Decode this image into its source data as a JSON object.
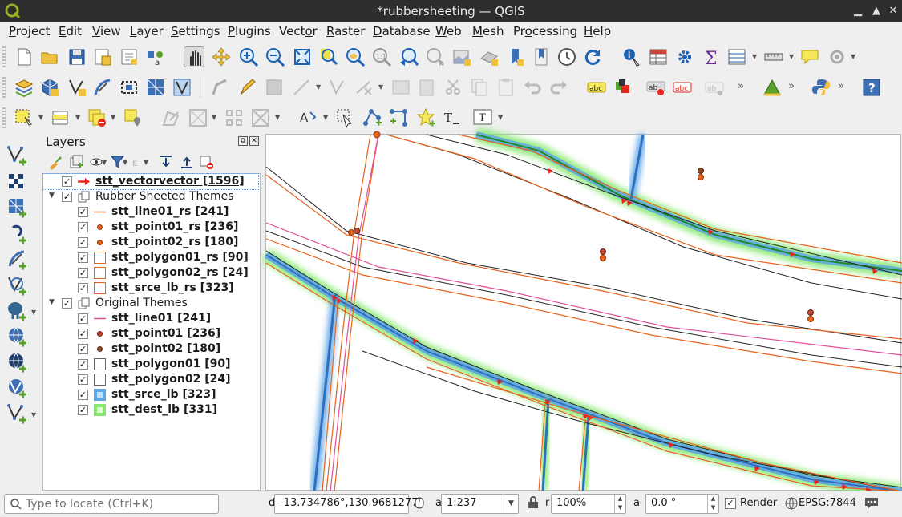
{
  "window": {
    "title": "*rubbersheeting — QGIS",
    "controls": [
      "minimize",
      "maximize",
      "close"
    ]
  },
  "menubar": {
    "items": [
      {
        "label": "Project",
        "u": "P",
        "rest": "roject"
      },
      {
        "label": "Edit",
        "u": "E",
        "rest": "dit"
      },
      {
        "label": "View",
        "u": "V",
        "rest": "iew"
      },
      {
        "label": "Layer",
        "u": "L",
        "rest": "ayer"
      },
      {
        "label": "Settings",
        "u": "S",
        "rest": "ettings"
      },
      {
        "label": "Plugins",
        "u": "P",
        "rest": "lugins"
      },
      {
        "label": "Vector",
        "u": "o",
        "pre": "Vect",
        "rest": "r"
      },
      {
        "label": "Raster",
        "u": "R",
        "rest": "aster"
      },
      {
        "label": "Database",
        "u": "D",
        "rest": "atabase"
      },
      {
        "label": "Web",
        "u": "W",
        "rest": "eb"
      },
      {
        "label": "Mesh",
        "u": "M",
        "rest": "esh"
      },
      {
        "label": "Processing",
        "u": "o",
        "pre": "Pr",
        "rest": "cessing"
      },
      {
        "label": "Help",
        "u": "H",
        "rest": "elp"
      }
    ]
  },
  "toolbars": {
    "row1_icons": [
      "new-project-icon",
      "open-project-icon",
      "save-project-icon",
      "save-as-icon",
      "new-layout-icon",
      "style-manager-icon",
      "pan-map-icon",
      "pan-to-selection-icon",
      "zoom-in-icon",
      "zoom-out-icon",
      "zoom-full-icon",
      "zoom-to-selection-icon",
      "zoom-to-layer-icon",
      "zoom-native-icon",
      "zoom-last-icon",
      "zoom-next-icon",
      "new-map-view-icon",
      "new-3d-view-icon",
      "bookmark-icon",
      "bookmarks-panel-icon",
      "temporal-controller-icon",
      "refresh-icon",
      "identify-icon",
      "attribute-table-icon",
      "settings-cog-icon",
      "statistics-sum-icon",
      "open-table-icon",
      "measure-icon",
      "map-tips-icon",
      "gps-icon"
    ],
    "row2_icons": [
      "data-source-manager-icon",
      "new-geopackage-icon",
      "digitize-line-icon",
      "digitize-curve-icon",
      "digitize-polygon-icon",
      "mesh-icon",
      "snap-icon",
      "current-edits-icon",
      "toggle-editing-icon",
      "save-edits-icon",
      "add-point-icon",
      "vertex-tool-icon",
      "delete-icon",
      "cut-icon",
      "copy-icon",
      "paste-icon",
      "undo-icon",
      "redo-icon",
      "label-abc-icon",
      "label-pin-icon",
      "label-move-icon",
      "label-rotate-icon",
      "label-change-icon",
      "label-hide-icon",
      "georeferencer-icon",
      "python-console-icon",
      "help-icon"
    ],
    "row3_icons": [
      "select-features-icon",
      "select-by-value-icon",
      "deselect-icon",
      "select-location-icon",
      "digitize-tool-icon",
      "add-ring-icon",
      "reshape-icon",
      "offset-curve-icon",
      "label-tool-icon",
      "pointer-icon",
      "add-vertex-icon",
      "node-tool-icon",
      "star-icon",
      "text-annotation-icon",
      "text-tool-icon"
    ]
  },
  "layers_panel": {
    "title": "Layers",
    "tree": [
      {
        "label": "stt_vectorvector [1596]",
        "checked": true,
        "bold": true,
        "underline": true,
        "symbol": "arrow",
        "level": 0
      },
      {
        "label": "Rubber Sheeted Themes",
        "checked": true,
        "group": true,
        "level": 0
      },
      {
        "label": "stt_line01_rs [241]",
        "checked": true,
        "bold": true,
        "symbol": "line-orange",
        "level": 1
      },
      {
        "label": "stt_point01_rs [236]",
        "checked": true,
        "bold": true,
        "symbol": "point-orange",
        "level": 1
      },
      {
        "label": "stt_point02_rs [180]",
        "checked": true,
        "bold": true,
        "symbol": "point-orange",
        "level": 1
      },
      {
        "label": "stt_polygon01_rs [90]",
        "checked": true,
        "bold": true,
        "symbol": "poly-orange",
        "level": 1
      },
      {
        "label": "stt_polygon02_rs [24]",
        "checked": true,
        "bold": true,
        "symbol": "poly-orange",
        "level": 1
      },
      {
        "label": "stt_srce_lb_rs [323]",
        "checked": true,
        "bold": true,
        "symbol": "poly-orange",
        "level": 1
      },
      {
        "label": "Original Themes",
        "checked": true,
        "group": true,
        "level": 0
      },
      {
        "label": "stt_line01 [241]",
        "checked": true,
        "bold": true,
        "symbol": "line-pink",
        "level": 1
      },
      {
        "label": "stt_point01 [236]",
        "checked": true,
        "bold": true,
        "symbol": "point-red",
        "level": 1
      },
      {
        "label": "stt_point02 [180]",
        "checked": true,
        "bold": true,
        "symbol": "point-brown",
        "level": 1
      },
      {
        "label": "stt_polygon01 [90]",
        "checked": true,
        "bold": true,
        "symbol": "poly-gray",
        "level": 1
      },
      {
        "label": "stt_polygon02 [24]",
        "checked": true,
        "bold": true,
        "symbol": "poly-gray",
        "level": 1
      },
      {
        "label": "stt_srce_lb [323]",
        "checked": true,
        "bold": true,
        "symbol": "raster-blue",
        "level": 1
      },
      {
        "label": "stt_dest_lb [331]",
        "checked": true,
        "bold": true,
        "symbol": "raster-green",
        "level": 1
      }
    ]
  },
  "statusbar": {
    "locate_placeholder": "Type to locate (Ctrl+K)",
    "coordinate_label": "d",
    "coordinate": "-13.734786°,130.9681277°",
    "scale_label": "a",
    "scale": "1:237",
    "magnifier_label": "r",
    "magnifier": "100%",
    "rotation_label": "a",
    "rotation": "0.0 °",
    "render_label": "Render",
    "render_checked": true,
    "crs": "EPSG:7844"
  },
  "colors": {
    "orange_line": "#e8621a",
    "pink_line": "#e0509a",
    "black_line": "#222222",
    "point_orange": "#e8621a",
    "point_red": "#c8463c",
    "point_brown": "#8a4a2e",
    "glow_blue": "#5fa6e6",
    "glow_green": "#86e86e",
    "vector_red": "#e8261a"
  }
}
